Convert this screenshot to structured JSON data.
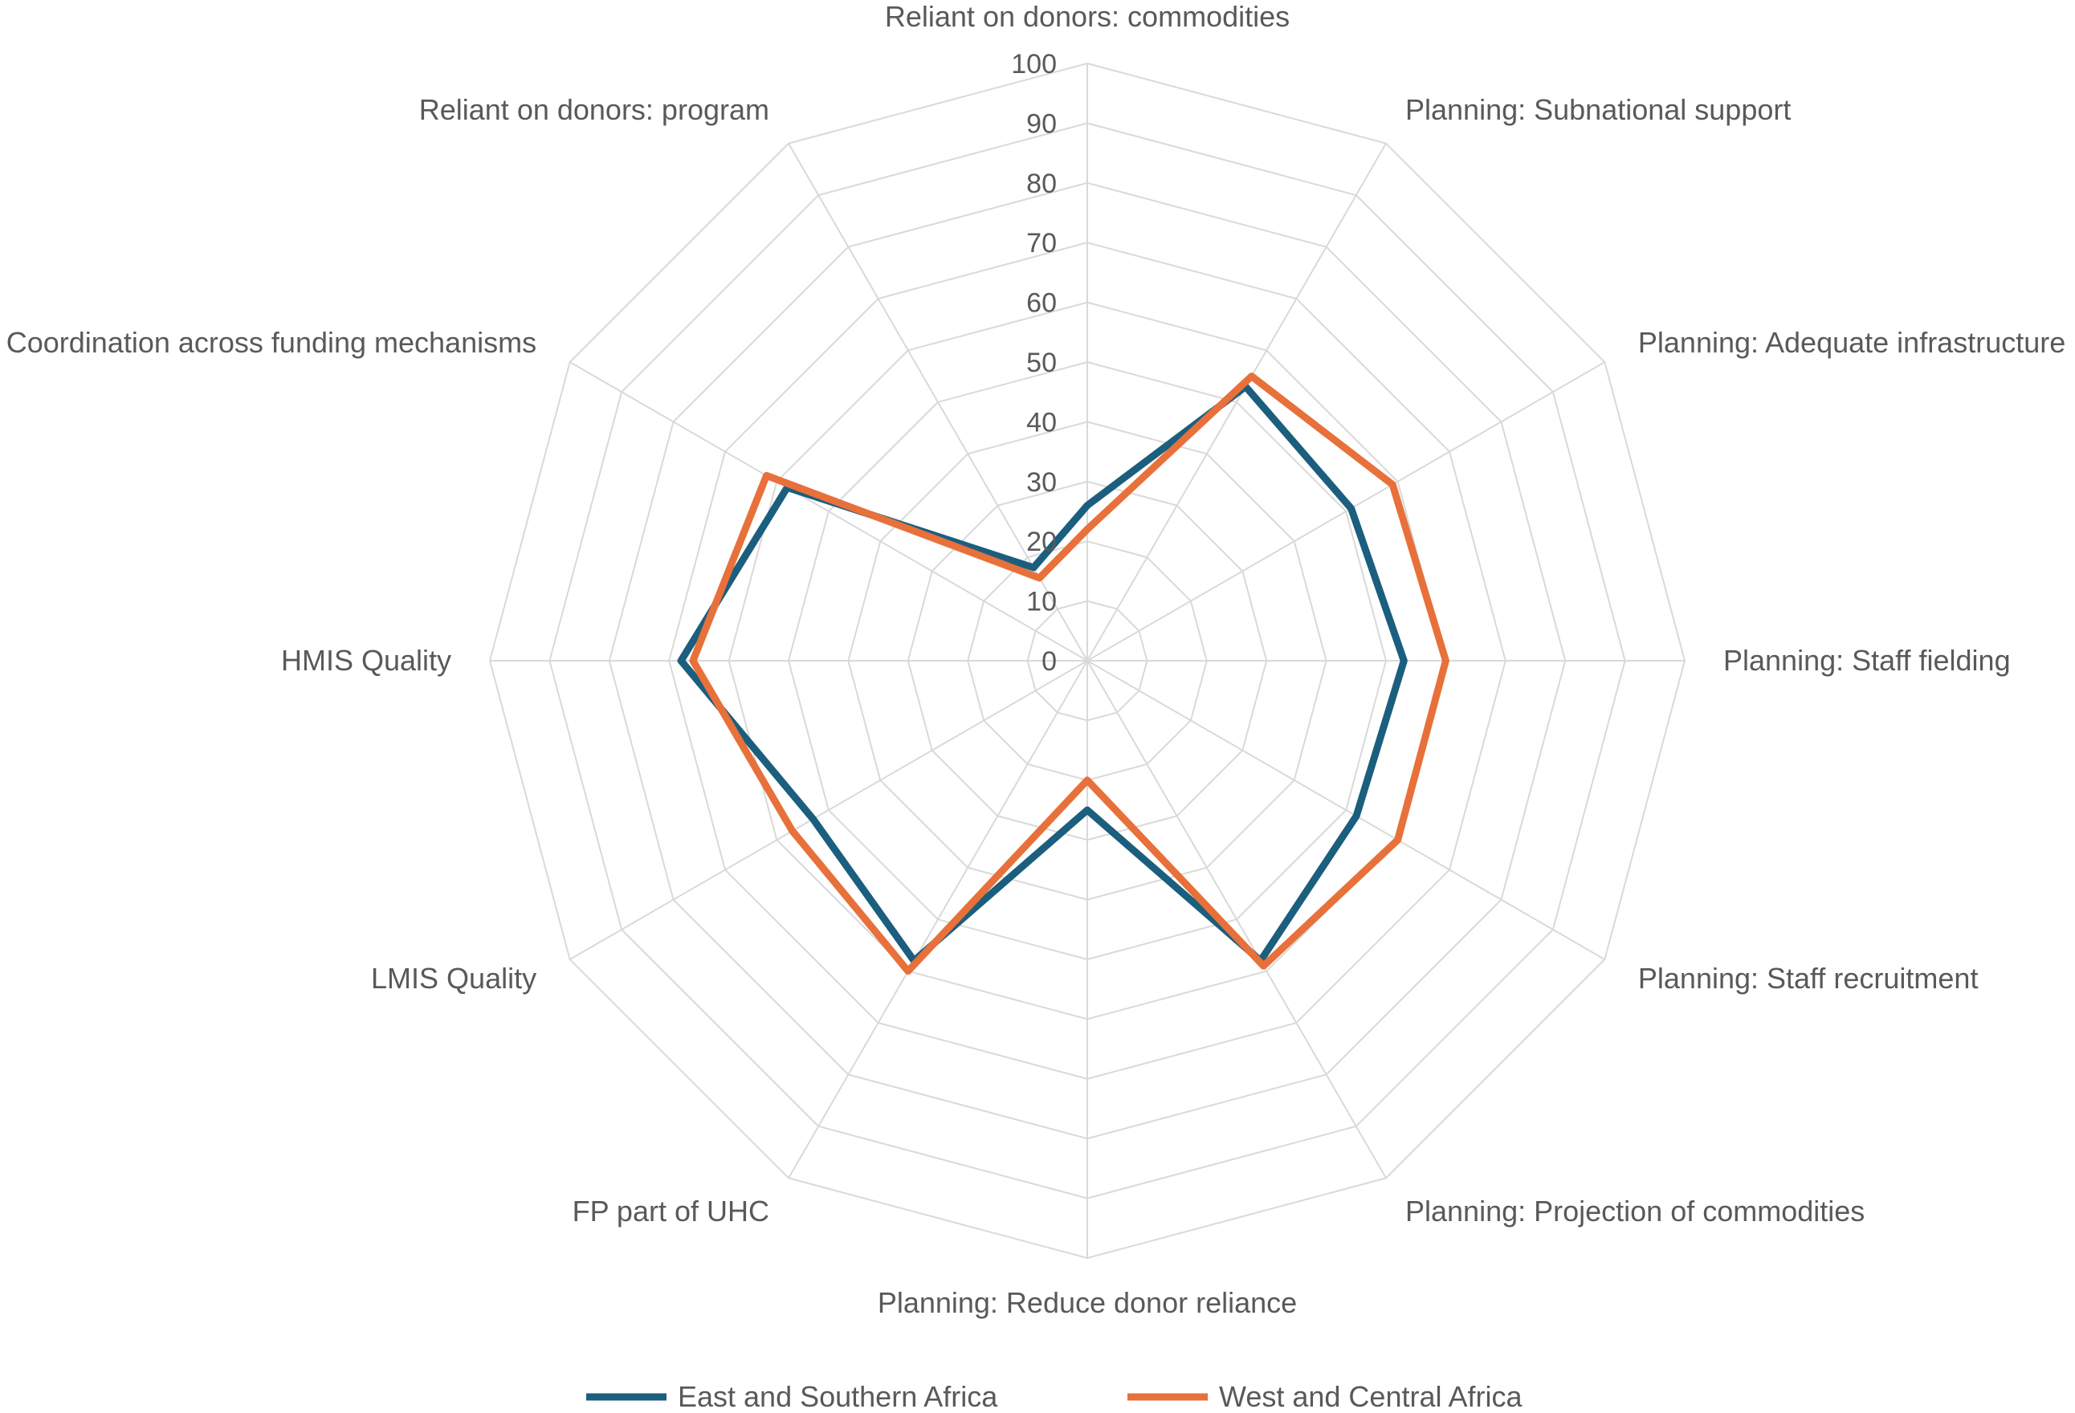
{
  "chart_data": {
    "type": "radar",
    "categories": [
      "Reliant on donors: commodities",
      "Planning: Subnational support",
      "Planning: Adequate infrastructure",
      "Planning: Staff fielding",
      "Planning: Staff recruitment",
      "Planning: Projection of commodities",
      "Planning: Reduce donor reliance",
      "FP part of UHC",
      "LMIS Quality",
      "HMIS Quality",
      "Coordination across funding mechanisms",
      "Reliant on donors: program"
    ],
    "ticks": [
      "0",
      "10",
      "20",
      "30",
      "40",
      "50",
      "60",
      "70",
      "80",
      "90",
      "100"
    ],
    "rlim": [
      0,
      100
    ],
    "grid": true,
    "legend_position": "bottom",
    "series": [
      {
        "name": "East and Southern Africa",
        "color": "#1B5E7E",
        "values": [
          26,
          53,
          51,
          53,
          52,
          58,
          25,
          58,
          53,
          68,
          58,
          18
        ]
      },
      {
        "name": "West and Central Africa",
        "color": "#E8703A",
        "values": [
          22,
          55,
          59,
          60,
          60,
          59,
          20,
          60,
          57,
          66,
          62,
          16
        ]
      }
    ]
  }
}
